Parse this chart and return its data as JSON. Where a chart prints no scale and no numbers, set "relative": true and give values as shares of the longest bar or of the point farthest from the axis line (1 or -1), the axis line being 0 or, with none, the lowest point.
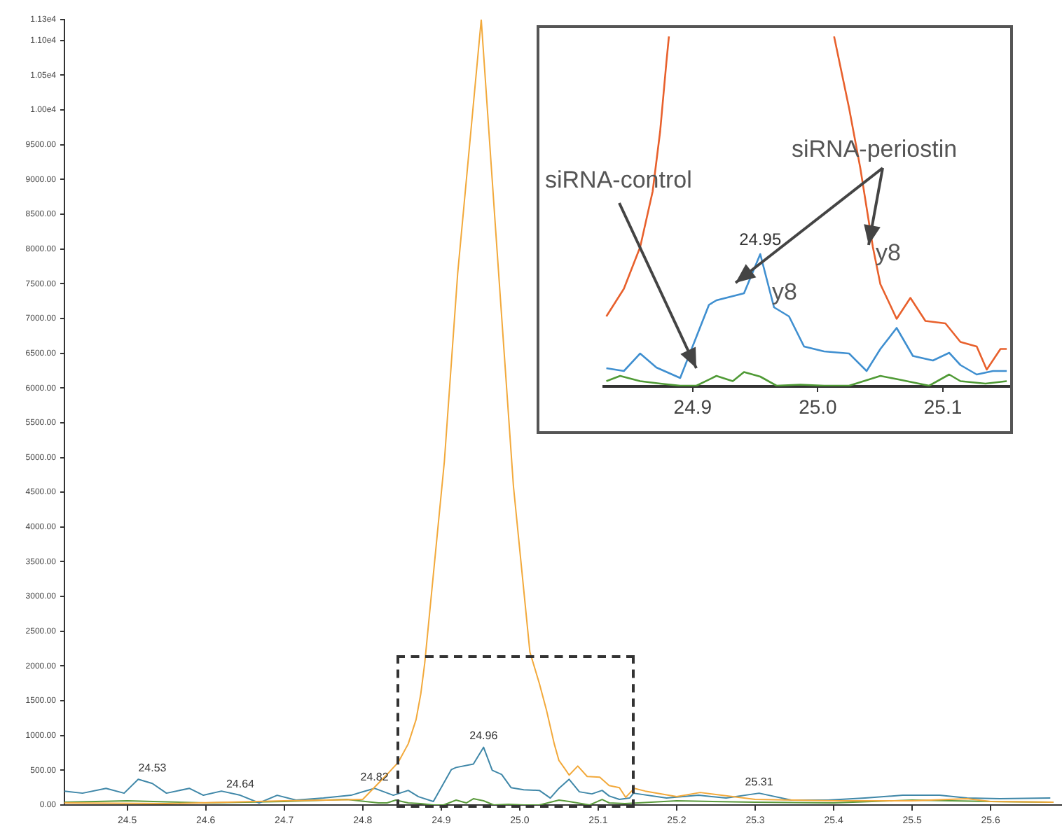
{
  "chart_data": [
    {
      "type": "line",
      "xlim": [
        24.42,
        25.69
      ],
      "ylim": [
        0,
        11300
      ],
      "xticks": [
        24.5,
        24.6,
        24.7,
        24.8,
        24.9,
        {
          "value": 25,
          "label": "25.0"
        },
        25.1,
        25.2,
        25.3,
        25.4,
        25.5,
        25.6
      ],
      "yticks": [
        {
          "value": 0,
          "label": "0.00"
        },
        {
          "value": 500,
          "label": "500.00"
        },
        {
          "value": 1000,
          "label": "1000.00"
        },
        {
          "value": 1500,
          "label": "1500.00"
        },
        {
          "value": 2000,
          "label": "2000.00"
        },
        {
          "value": 2500,
          "label": "2500.00"
        },
        {
          "value": 3000,
          "label": "3000.00"
        },
        {
          "value": 3500,
          "label": "3500.00"
        },
        {
          "value": 4000,
          "label": "4000.00"
        },
        {
          "value": 4500,
          "label": "4500.00"
        },
        {
          "value": 5000,
          "label": "5000.00"
        },
        {
          "value": 5500,
          "label": "5500.00"
        },
        {
          "value": 6000,
          "label": "6000.00"
        },
        {
          "value": 6500,
          "label": "6500.00"
        },
        {
          "value": 7000,
          "label": "7000.00"
        },
        {
          "value": 7500,
          "label": "7500.00"
        },
        {
          "value": 8000,
          "label": "8000.00"
        },
        {
          "value": 8500,
          "label": "8500.00"
        },
        {
          "value": 9000,
          "label": "9000.00"
        },
        {
          "value": 9500,
          "label": "9500.00"
        },
        {
          "value": 10000,
          "label": "1.00e4"
        },
        {
          "value": 10500,
          "label": "1.05e4"
        },
        {
          "value": 11000,
          "label": "1.10e4"
        },
        {
          "value": 11300,
          "label": "1.13e4"
        }
      ],
      "grid": false,
      "legend": false,
      "marker": "none",
      "line_style": "solid",
      "series": [
        {
          "color": "#f2a93b",
          "x": [
            24.42,
            24.55,
            24.7,
            24.8,
            24.831,
            24.845,
            24.858,
            24.868,
            24.874,
            24.879,
            24.904,
            24.921,
            24.951,
            24.969,
            24.992,
            25.013,
            25.025,
            25.034,
            25.044,
            25.05,
            25.057,
            25.063,
            25.074,
            25.086,
            25.102,
            25.114,
            25.127,
            25.135,
            25.146,
            25.16,
            25.2,
            25.23,
            25.3,
            25.4,
            25.5,
            25.57,
            25.6,
            25.68
          ],
          "values": [
            30,
            20,
            60,
            80,
            440,
            610,
            880,
            1230,
            1600,
            2040,
            4940,
            7650,
            11300,
            8330,
            4590,
            2200,
            1750,
            1370,
            880,
            640,
            530,
            430,
            560,
            410,
            400,
            280,
            250,
            110,
            240,
            200,
            120,
            180,
            80,
            60,
            60,
            90,
            50,
            40
          ]
        },
        {
          "color": "#3f87a8",
          "x": [
            24.42,
            24.443,
            24.473,
            24.496,
            24.514,
            24.532,
            24.55,
            24.579,
            24.597,
            24.62,
            24.644,
            24.668,
            24.691,
            24.715,
            24.75,
            24.785,
            24.815,
            24.839,
            24.858,
            24.871,
            24.89,
            24.913,
            24.919,
            24.941,
            24.954,
            24.965,
            24.977,
            24.989,
            25.005,
            25.025,
            25.039,
            25.05,
            25.063,
            25.076,
            25.092,
            25.105,
            25.114,
            25.127,
            25.14,
            25.145,
            25.187,
            25.228,
            25.263,
            25.305,
            25.346,
            25.393,
            25.44,
            25.488,
            25.535,
            25.57,
            25.612,
            25.676
          ],
          "values": [
            200,
            170,
            240,
            170,
            370,
            310,
            170,
            240,
            140,
            200,
            140,
            30,
            140,
            70,
            100,
            140,
            240,
            140,
            210,
            120,
            50,
            510,
            540,
            590,
            830,
            500,
            440,
            250,
            220,
            210,
            100,
            240,
            370,
            190,
            160,
            210,
            130,
            80,
            100,
            170,
            100,
            140,
            100,
            170,
            70,
            70,
            100,
            140,
            140,
            100,
            90,
            100
          ]
        },
        {
          "color": "#5a9a3c",
          "x": [
            24.42,
            24.5,
            24.6,
            24.7,
            24.78,
            24.82,
            24.831,
            24.842,
            24.858,
            24.874,
            24.89,
            24.903,
            24.919,
            24.932,
            24.941,
            24.954,
            24.967,
            24.986,
            25.005,
            25.025,
            25.05,
            25.063,
            25.089,
            25.105,
            25.114,
            25.134,
            25.151,
            25.2,
            25.3,
            25.4,
            25.5,
            25.6,
            25.68
          ],
          "values": [
            40,
            60,
            30,
            50,
            80,
            30,
            30,
            70,
            30,
            20,
            0,
            0,
            70,
            30,
            90,
            60,
            0,
            10,
            0,
            0,
            70,
            50,
            0,
            80,
            30,
            20,
            30,
            60,
            40,
            30,
            70,
            50,
            40
          ]
        }
      ],
      "annotations": [
        {
          "text": "24.53",
          "x": 24.532,
          "y": 370
        },
        {
          "text": "24.64",
          "x": 24.644,
          "y": 140
        },
        {
          "text": "24.82",
          "x": 24.815,
          "y": 240
        },
        {
          "text": "24.96",
          "x": 24.954,
          "y": 830
        },
        {
          "text": "25.31",
          "x": 25.305,
          "y": 170
        }
      ]
    },
    {
      "type": "line",
      "relative": true,
      "xlim": [
        24.829,
        25.153
      ],
      "xticks": [
        24.9,
        {
          "value": 25,
          "label": "25.0"
        },
        25.1
      ],
      "grid": false,
      "legend": false,
      "marker": "none",
      "line_style": "solid",
      "series": [
        {
          "color": "#e8602c",
          "x": [
            24.831,
            24.845,
            24.858,
            24.868,
            24.874,
            24.879,
            24.881,
            24.95,
            25.013,
            25.025,
            25.034,
            25.044,
            25.05,
            25.057,
            25.063,
            25.074,
            25.086,
            25.102,
            25.114,
            25.127,
            25.135,
            25.146,
            25.151
          ],
          "values": [
            0.2,
            0.279,
            0.398,
            0.557,
            0.729,
            0.927,
            1.0,
            null,
            1.0,
            0.795,
            0.623,
            0.398,
            0.292,
            0.239,
            0.193,
            0.253,
            0.187,
            0.18,
            0.127,
            0.114,
            0.048,
            0.107,
            0.107
          ]
        },
        {
          "color": "#3f8fd0",
          "x": [
            24.831,
            24.845,
            24.858,
            24.871,
            24.89,
            24.913,
            24.919,
            24.941,
            24.954,
            24.965,
            24.977,
            24.989,
            25.005,
            25.025,
            25.039,
            25.05,
            25.063,
            25.076,
            25.092,
            25.105,
            25.114,
            25.127,
            25.14,
            25.151
          ],
          "values": [
            0.052,
            0.044,
            0.094,
            0.054,
            0.024,
            0.233,
            0.246,
            0.266,
            0.378,
            0.226,
            0.2,
            0.114,
            0.1,
            0.094,
            0.044,
            0.107,
            0.167,
            0.087,
            0.074,
            0.096,
            0.061,
            0.034,
            0.044,
            0.044
          ]
        },
        {
          "color": "#4f9a35",
          "x": [
            24.831,
            24.842,
            24.858,
            24.874,
            24.89,
            24.903,
            24.919,
            24.932,
            24.941,
            24.954,
            24.967,
            24.986,
            25.005,
            25.025,
            25.05,
            25.063,
            25.089,
            25.105,
            25.114,
            25.134,
            25.151
          ],
          "values": [
            0.015,
            0.03,
            0.015,
            0.008,
            0.002,
            0.002,
            0.03,
            0.015,
            0.041,
            0.028,
            0.002,
            0.005,
            0.002,
            0.002,
            0.03,
            0.021,
            0.002,
            0.034,
            0.015,
            0.008,
            0.015
          ]
        }
      ],
      "annotations": [
        {
          "text": "24.95",
          "x": 24.954,
          "y": 0.378
        },
        "siRNA-control",
        "siRNA-periostin",
        "y8",
        "y8"
      ]
    }
  ]
}
